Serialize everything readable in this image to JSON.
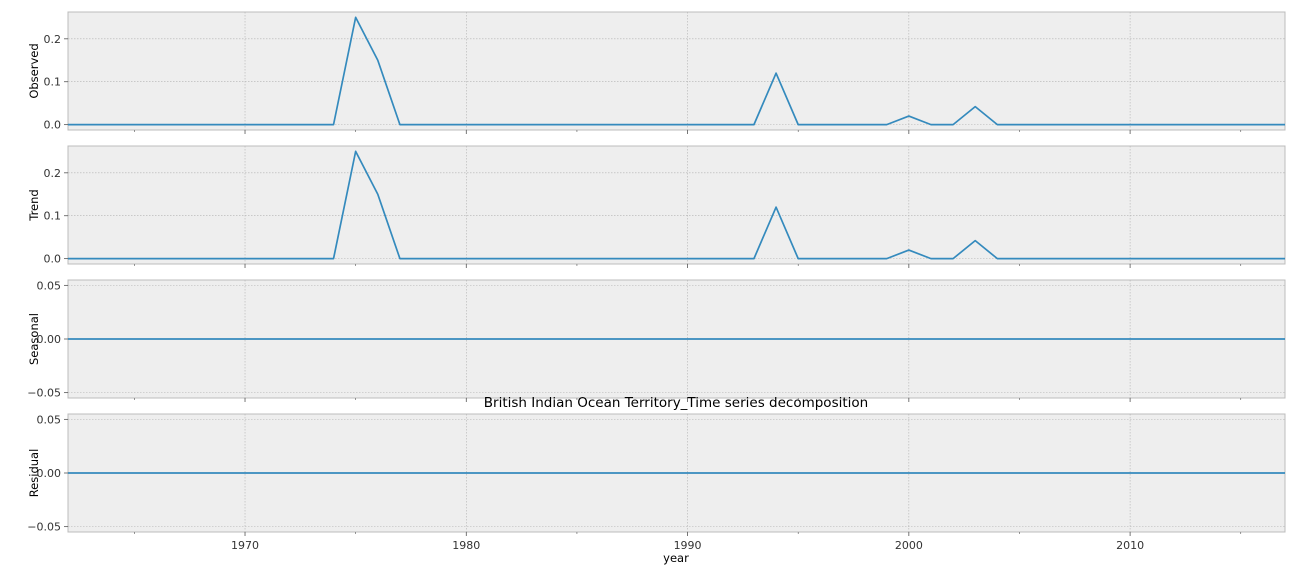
{
  "chart_data": {
    "type": "line",
    "title": "British Indian Ocean Territory_Time series decomposition",
    "xlabel": "year",
    "xlim": [
      1962,
      2017
    ],
    "x_ticks": [
      1970,
      1980,
      1990,
      2000,
      2010
    ],
    "x_minor_ticks": [
      1965,
      1975,
      1985,
      1995,
      2005,
      2015
    ],
    "grid": true,
    "series_color": "#348ABD",
    "background_color": "#EEEEEE",
    "x": [
      1962,
      1963,
      1964,
      1965,
      1966,
      1967,
      1968,
      1969,
      1970,
      1971,
      1972,
      1973,
      1974,
      1975,
      1976,
      1977,
      1978,
      1979,
      1980,
      1981,
      1982,
      1983,
      1984,
      1985,
      1986,
      1987,
      1988,
      1989,
      1990,
      1991,
      1992,
      1993,
      1994,
      1995,
      1996,
      1997,
      1998,
      1999,
      2000,
      2001,
      2002,
      2003,
      2004,
      2005,
      2006,
      2007,
      2008,
      2009,
      2010,
      2011,
      2012,
      2013,
      2014,
      2015,
      2016,
      2017
    ],
    "panels": [
      {
        "ylabel": "Observed",
        "ylim": [
          -0.0125,
          0.2625
        ],
        "y_ticks": [
          0.0,
          0.1,
          0.2
        ],
        "y_tick_labels": [
          "0.0",
          "0.1",
          "0.2"
        ],
        "values": [
          0,
          0,
          0,
          0,
          0,
          0,
          0,
          0,
          0,
          0,
          0,
          0,
          0,
          0.25,
          0.15,
          0,
          0,
          0,
          0,
          0,
          0,
          0,
          0,
          0,
          0,
          0,
          0,
          0,
          0,
          0,
          0,
          0,
          0.12,
          0,
          0,
          0,
          0,
          0,
          0.02,
          0,
          0,
          0.042,
          0,
          0,
          0,
          0,
          0,
          0,
          0,
          0,
          0,
          0,
          0,
          0,
          0,
          0
        ]
      },
      {
        "ylabel": "Trend",
        "ylim": [
          -0.0125,
          0.2625
        ],
        "y_ticks": [
          0.0,
          0.1,
          0.2
        ],
        "y_tick_labels": [
          "0.0",
          "0.1",
          "0.2"
        ],
        "values": [
          0,
          0,
          0,
          0,
          0,
          0,
          0,
          0,
          0,
          0,
          0,
          0,
          0,
          0.25,
          0.15,
          0,
          0,
          0,
          0,
          0,
          0,
          0,
          0,
          0,
          0,
          0,
          0,
          0,
          0,
          0,
          0,
          0,
          0.12,
          0,
          0,
          0,
          0,
          0,
          0.02,
          0,
          0,
          0.042,
          0,
          0,
          0,
          0,
          0,
          0,
          0,
          0,
          0,
          0,
          0,
          0,
          0,
          0
        ]
      },
      {
        "ylabel": "Seasonal",
        "ylim": [
          -0.055,
          0.055
        ],
        "y_ticks": [
          -0.05,
          0.0,
          0.05
        ],
        "y_tick_labels": [
          "−0.05",
          "0.00",
          "0.05"
        ],
        "values": [
          0,
          0,
          0,
          0,
          0,
          0,
          0,
          0,
          0,
          0,
          0,
          0,
          0,
          0,
          0,
          0,
          0,
          0,
          0,
          0,
          0,
          0,
          0,
          0,
          0,
          0,
          0,
          0,
          0,
          0,
          0,
          0,
          0,
          0,
          0,
          0,
          0,
          0,
          0,
          0,
          0,
          0,
          0,
          0,
          0,
          0,
          0,
          0,
          0,
          0,
          0,
          0,
          0,
          0,
          0,
          0
        ]
      },
      {
        "ylabel": "Residual",
        "ylim": [
          -0.055,
          0.055
        ],
        "y_ticks": [
          -0.05,
          0.0,
          0.05
        ],
        "y_tick_labels": [
          "−0.05",
          "0.00",
          "0.05"
        ],
        "values": [
          0,
          0,
          0,
          0,
          0,
          0,
          0,
          0,
          0,
          0,
          0,
          0,
          0,
          0,
          0,
          0,
          0,
          0,
          0,
          0,
          0,
          0,
          0,
          0,
          0,
          0,
          0,
          0,
          0,
          0,
          0,
          0,
          0,
          0,
          0,
          0,
          0,
          0,
          0,
          0,
          0,
          0,
          0,
          0,
          0,
          0,
          0,
          0,
          0,
          0,
          0,
          0,
          0,
          0,
          0,
          0
        ]
      }
    ]
  }
}
